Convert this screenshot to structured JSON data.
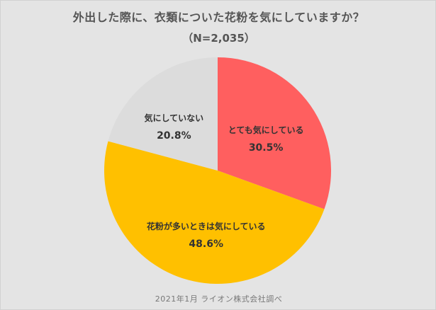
{
  "title": "外出した際に、衣類についた花粉を気にしていますか？",
  "subtitle": "（N=2,035）",
  "source": "2021年1月 ライオン株式会社調べ",
  "chart_data": {
    "type": "pie",
    "title": "外出した際に、衣類についた花粉を気にしていますか？",
    "subtitle": "（N=2,035）",
    "start": "12 o'clock",
    "direction": "clockwise",
    "slices": [
      {
        "label": "とても気にしている",
        "value": 30.5,
        "value_label": "30.5%",
        "color": "#ff5f5f"
      },
      {
        "label": "花粉が多いときは気にしている",
        "value": 48.6,
        "value_label": "48.6%",
        "color": "#ffc000"
      },
      {
        "label": "気にしていない",
        "value": 20.8,
        "value_label": "20.8%",
        "color": "#dcdcdc"
      }
    ],
    "legend": "none"
  }
}
